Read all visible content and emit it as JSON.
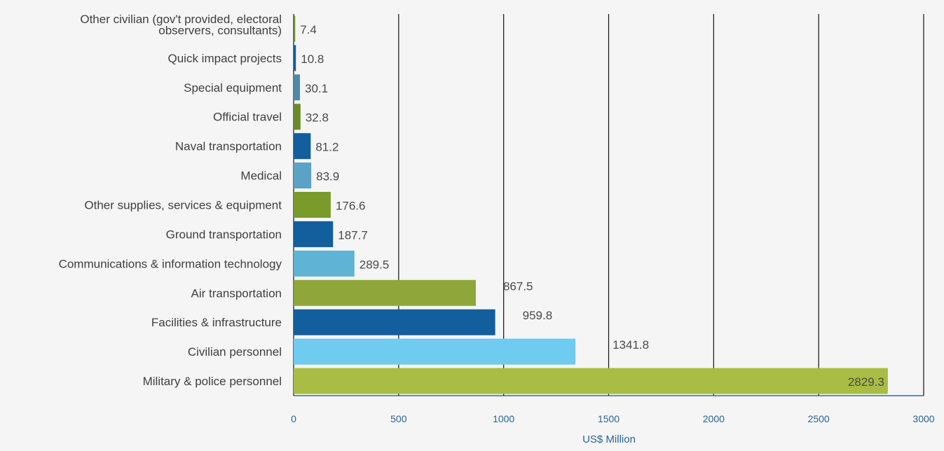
{
  "chart_data": {
    "type": "bar",
    "orientation": "horizontal",
    "categories": [
      "Other civilian (gov't provided, electoral observers, consultants)",
      "Quick impact projects",
      "Special equipment",
      "Official travel",
      "Naval transportation",
      "Medical",
      "Other supplies, services & equipment",
      "Ground transportation",
      "Communications & information technology",
      "Air transportation",
      "Facilities & infrastructure",
      "Civilian personnel",
      "Military & police personnel"
    ],
    "category_lines": [
      [
        "Other civilian (gov't provided, electoral",
        "observers, consultants)"
      ],
      [
        "Quick impact projects"
      ],
      [
        "Special equipment"
      ],
      [
        "Official travel"
      ],
      [
        "Naval transportation"
      ],
      [
        "Medical"
      ],
      [
        "Other supplies, services & equipment"
      ],
      [
        "Ground transportation"
      ],
      [
        "Communications & information technology"
      ],
      [
        "Air transportation"
      ],
      [
        "Facilities & infrastructure"
      ],
      [
        "Civilian personnel"
      ],
      [
        "Military & police personnel"
      ]
    ],
    "values": [
      7.4,
      10.8,
      30.1,
      32.8,
      81.2,
      83.9,
      176.6,
      187.7,
      289.5,
      867.5,
      959.8,
      1341.8,
      2829.3
    ],
    "value_labels": [
      "7.4",
      "10.8",
      "30.1",
      "32.8",
      "81.2",
      "83.9",
      "176.6",
      "187.7",
      "289.5",
      "867.5",
      "959.8",
      "1341.8",
      "2829.3"
    ],
    "colors": [
      "#6b8a2a",
      "#135e9c",
      "#4c8aa8",
      "#6b8a2a",
      "#135e9c",
      "#5ba2c4",
      "#7a9a2a",
      "#135e9c",
      "#5fb3d4",
      "#8fa63a",
      "#135e9c",
      "#6fcbf0",
      "#a9bc44"
    ],
    "xlabel": "US$ Million",
    "xlim": [
      0,
      3000
    ],
    "xticks": [
      "0",
      "500",
      "1000",
      "1500",
      "2000",
      "2500",
      "3000"
    ],
    "grid": "vertical"
  }
}
